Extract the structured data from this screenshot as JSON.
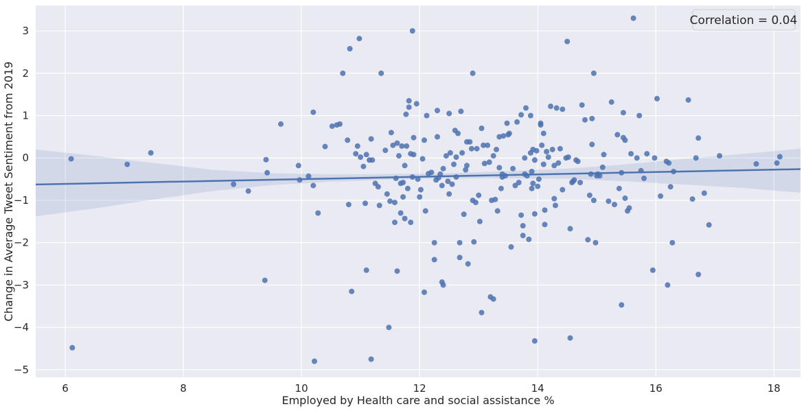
{
  "chart_data": {
    "type": "scatter",
    "title": "",
    "xlabel": "Employed by Health care and social assistance %",
    "ylabel": "Change in Average Tweet Sentiment from 2019",
    "xlim": [
      5.5,
      18.45
    ],
    "ylim": [
      -5.18,
      3.6
    ],
    "x_ticks": [
      6,
      8,
      10,
      12,
      14,
      16,
      18
    ],
    "y_ticks": [
      3,
      2,
      1,
      0,
      -1,
      -2,
      -3,
      -4,
      -5
    ],
    "x_tick_labels": [
      "6",
      "8",
      "10",
      "12",
      "14",
      "16",
      "18"
    ],
    "y_tick_labels": [
      "3",
      "2",
      "1",
      "0",
      "−1",
      "−2",
      "−3",
      "−4",
      "−5"
    ],
    "grid": true,
    "legend": {
      "text": "Correlation = 0.04",
      "placement": "top-right"
    },
    "colors": {
      "background": "#eaeaf2",
      "grid": "#ffffff",
      "points": "#4c72b0",
      "line": "#4c72b0",
      "band": "#4c72b0"
    },
    "regression": {
      "intercept": -0.78,
      "slope": 0.028
    },
    "confidence_band": {
      "x": [
        5.5,
        6.5,
        7.5,
        8.5,
        9.5,
        10.5,
        11.5,
        12.5,
        13.5,
        14.5,
        15.5,
        16.5,
        17.5,
        18.45
      ],
      "upper": [
        0.2,
        0.05,
        -0.12,
        -0.28,
        -0.36,
        -0.39,
        -0.38,
        -0.36,
        -0.31,
        -0.25,
        -0.15,
        -0.02,
        0.1,
        0.22
      ],
      "lower": [
        -1.38,
        -1.19,
        -0.98,
        -0.78,
        -0.64,
        -0.56,
        -0.51,
        -0.48,
        -0.48,
        -0.49,
        -0.55,
        -0.63,
        -0.71,
        -0.82
      ]
    },
    "points": [
      [
        6.1,
        -0.02
      ],
      [
        6.12,
        -4.48
      ],
      [
        7.05,
        -0.15
      ],
      [
        7.45,
        0.12
      ],
      [
        8.85,
        -0.62
      ],
      [
        9.1,
        -0.78
      ],
      [
        9.38,
        -2.89
      ],
      [
        9.4,
        -0.04
      ],
      [
        9.42,
        -0.35
      ],
      [
        9.65,
        0.8
      ],
      [
        9.95,
        -0.18
      ],
      [
        9.97,
        -0.52
      ],
      [
        10.12,
        -0.43
      ],
      [
        10.2,
        -0.65
      ],
      [
        10.2,
        1.08
      ],
      [
        10.22,
        -4.8
      ],
      [
        10.28,
        -1.3
      ],
      [
        10.4,
        0.27
      ],
      [
        10.52,
        0.75
      ],
      [
        10.6,
        0.78
      ],
      [
        10.65,
        0.8
      ],
      [
        10.7,
        2.0
      ],
      [
        10.78,
        0.42
      ],
      [
        10.8,
        -1.1
      ],
      [
        10.82,
        2.58
      ],
      [
        10.85,
        -3.15
      ],
      [
        10.92,
        0.1
      ],
      [
        10.95,
        0.28
      ],
      [
        10.98,
        2.82
      ],
      [
        11.0,
        0.02
      ],
      [
        11.05,
        -0.2
      ],
      [
        11.08,
        -1.07
      ],
      [
        11.1,
        0.08
      ],
      [
        11.1,
        -2.65
      ],
      [
        11.15,
        -0.05
      ],
      [
        11.18,
        0.45
      ],
      [
        11.18,
        -4.75
      ],
      [
        11.2,
        -0.05
      ],
      [
        11.25,
        -0.6
      ],
      [
        11.3,
        -0.68
      ],
      [
        11.32,
        -1.12
      ],
      [
        11.35,
        2.0
      ],
      [
        11.42,
        0.18
      ],
      [
        11.45,
        -0.85
      ],
      [
        11.48,
        -4.0
      ],
      [
        11.5,
        -1.02
      ],
      [
        11.52,
        0.6
      ],
      [
        11.55,
        0.3
      ],
      [
        11.58,
        -1.05
      ],
      [
        11.58,
        -1.52
      ],
      [
        11.6,
        -0.48
      ],
      [
        11.62,
        -2.67
      ],
      [
        11.62,
        0.35
      ],
      [
        11.65,
        0.05
      ],
      [
        11.68,
        -0.6
      ],
      [
        11.68,
        -1.3
      ],
      [
        11.7,
        0.28
      ],
      [
        11.72,
        -0.92
      ],
      [
        11.72,
        -0.58
      ],
      [
        11.75,
        -0.18
      ],
      [
        11.75,
        -1.43
      ],
      [
        11.77,
        1.03
      ],
      [
        11.78,
        0.28
      ],
      [
        11.8,
        -0.72
      ],
      [
        11.82,
        1.2
      ],
      [
        11.82,
        1.35
      ],
      [
        11.85,
        -1.52
      ],
      [
        11.85,
        0.1
      ],
      [
        11.88,
        3.0
      ],
      [
        11.88,
        -0.45
      ],
      [
        11.9,
        0.48
      ],
      [
        11.9,
        0.08
      ],
      [
        11.95,
        1.28
      ],
      [
        11.97,
        -0.5
      ],
      [
        12.0,
        -0.92
      ],
      [
        12.02,
        -0.75
      ],
      [
        12.05,
        -0.02
      ],
      [
        12.08,
        0.42
      ],
      [
        12.08,
        -3.17
      ],
      [
        12.1,
        -1.25
      ],
      [
        12.12,
        1.0
      ],
      [
        12.15,
        -0.37
      ],
      [
        12.2,
        -0.34
      ],
      [
        12.25,
        -2.0
      ],
      [
        12.25,
        -2.4
      ],
      [
        12.28,
        -0.52
      ],
      [
        12.3,
        1.12
      ],
      [
        12.3,
        0.5
      ],
      [
        12.32,
        -0.47
      ],
      [
        12.35,
        -0.38
      ],
      [
        12.38,
        -0.65
      ],
      [
        12.38,
        -2.93
      ],
      [
        12.4,
        -0.25
      ],
      [
        12.4,
        -3.0
      ],
      [
        12.45,
        0.05
      ],
      [
        12.48,
        -0.55
      ],
      [
        12.5,
        -0.85
      ],
      [
        12.5,
        1.05
      ],
      [
        12.52,
        0.12
      ],
      [
        12.55,
        -0.62
      ],
      [
        12.58,
        -0.15
      ],
      [
        12.6,
        0.65
      ],
      [
        12.62,
        0.02
      ],
      [
        12.62,
        -0.45
      ],
      [
        12.65,
        0.58
      ],
      [
        12.68,
        -2.35
      ],
      [
        12.68,
        -2.0
      ],
      [
        12.7,
        1.1
      ],
      [
        12.72,
        0.12
      ],
      [
        12.75,
        -1.33
      ],
      [
        12.78,
        -0.28
      ],
      [
        12.8,
        -0.18
      ],
      [
        12.8,
        0.38
      ],
      [
        12.82,
        -2.5
      ],
      [
        12.85,
        0.38
      ],
      [
        12.88,
        0.22
      ],
      [
        12.9,
        2.0
      ],
      [
        12.9,
        -1.0
      ],
      [
        12.92,
        -1.98
      ],
      [
        12.95,
        -1.05
      ],
      [
        12.97,
        0.22
      ],
      [
        13.0,
        -0.88
      ],
      [
        13.02,
        -1.5
      ],
      [
        13.05,
        -3.65
      ],
      [
        13.05,
        0.7
      ],
      [
        13.08,
        0.3
      ],
      [
        13.1,
        -0.13
      ],
      [
        13.15,
        0.3
      ],
      [
        13.18,
        -0.1
      ],
      [
        13.2,
        -3.28
      ],
      [
        13.22,
        -1.0
      ],
      [
        13.25,
        -3.33
      ],
      [
        13.25,
        0.05
      ],
      [
        13.28,
        -0.98
      ],
      [
        13.3,
        0.2
      ],
      [
        13.32,
        -1.25
      ],
      [
        13.35,
        0.5
      ],
      [
        13.35,
        -0.23
      ],
      [
        13.38,
        -0.72
      ],
      [
        13.4,
        -0.45
      ],
      [
        13.4,
        -0.38
      ],
      [
        13.42,
        0.52
      ],
      [
        13.45,
        -0.42
      ],
      [
        13.48,
        0.82
      ],
      [
        13.5,
        0.55
      ],
      [
        13.52,
        0.58
      ],
      [
        13.55,
        -2.1
      ],
      [
        13.58,
        -0.25
      ],
      [
        13.62,
        -0.65
      ],
      [
        13.65,
        0.85
      ],
      [
        13.68,
        -0.58
      ],
      [
        13.72,
        1.02
      ],
      [
        13.72,
        -1.35
      ],
      [
        13.75,
        -1.6
      ],
      [
        13.75,
        -1.83
      ],
      [
        13.78,
        -0.38
      ],
      [
        13.78,
        0.0
      ],
      [
        13.8,
        1.18
      ],
      [
        13.82,
        -0.42
      ],
      [
        13.85,
        -1.92
      ],
      [
        13.88,
        1.0
      ],
      [
        13.88,
        0.12
      ],
      [
        13.9,
        -0.72
      ],
      [
        13.9,
        -0.32
      ],
      [
        13.92,
        0.2
      ],
      [
        13.92,
        -0.6
      ],
      [
        13.95,
        -4.32
      ],
      [
        13.95,
        -1.32
      ],
      [
        13.95,
        -0.05
      ],
      [
        13.98,
        0.17
      ],
      [
        14.0,
        -0.67
      ],
      [
        14.02,
        -0.5
      ],
      [
        14.05,
        0.82
      ],
      [
        14.05,
        0.78
      ],
      [
        14.07,
        0.3
      ],
      [
        14.1,
        0.58
      ],
      [
        14.1,
        -0.15
      ],
      [
        14.12,
        -1.57
      ],
      [
        14.12,
        -1.23
      ],
      [
        14.15,
        0.15
      ],
      [
        14.18,
        0.02
      ],
      [
        14.22,
        1.22
      ],
      [
        14.25,
        0.2
      ],
      [
        14.28,
        -0.96
      ],
      [
        14.28,
        -0.18
      ],
      [
        14.3,
        -1.12
      ],
      [
        14.32,
        1.18
      ],
      [
        14.35,
        -0.12
      ],
      [
        14.38,
        0.22
      ],
      [
        14.42,
        -0.75
      ],
      [
        14.42,
        1.15
      ],
      [
        14.48,
        0.0
      ],
      [
        14.5,
        2.75
      ],
      [
        14.52,
        0.02
      ],
      [
        14.55,
        -1.67
      ],
      [
        14.55,
        -4.25
      ],
      [
        14.58,
        -0.58
      ],
      [
        14.6,
        -0.55
      ],
      [
        14.62,
        -0.52
      ],
      [
        14.65,
        -0.05
      ],
      [
        14.68,
        -0.08
      ],
      [
        14.72,
        -0.58
      ],
      [
        14.75,
        1.25
      ],
      [
        14.8,
        0.9
      ],
      [
        14.85,
        -1.93
      ],
      [
        14.88,
        -0.88
      ],
      [
        14.9,
        -0.38
      ],
      [
        14.92,
        0.93
      ],
      [
        14.92,
        0.32
      ],
      [
        14.95,
        2.0
      ],
      [
        14.95,
        -1.0
      ],
      [
        14.98,
        -2.0
      ],
      [
        15.0,
        -0.42
      ],
      [
        15.02,
        -0.38
      ],
      [
        15.05,
        -0.42
      ],
      [
        15.1,
        -0.22
      ],
      [
        15.12,
        0.08
      ],
      [
        15.2,
        -1.02
      ],
      [
        15.25,
        1.32
      ],
      [
        15.3,
        -1.1
      ],
      [
        15.35,
        0.55
      ],
      [
        15.38,
        -0.72
      ],
      [
        15.42,
        -0.35
      ],
      [
        15.42,
        -3.47
      ],
      [
        15.45,
        0.48
      ],
      [
        15.45,
        1.07
      ],
      [
        15.48,
        -0.95
      ],
      [
        15.48,
        0.42
      ],
      [
        15.52,
        -1.25
      ],
      [
        15.55,
        -1.18
      ],
      [
        15.58,
        0.1
      ],
      [
        15.62,
        3.3
      ],
      [
        15.68,
        0.0
      ],
      [
        15.72,
        1.0
      ],
      [
        15.75,
        -0.3
      ],
      [
        15.8,
        -0.48
      ],
      [
        15.85,
        0.1
      ],
      [
        15.95,
        -2.65
      ],
      [
        15.98,
        0.0
      ],
      [
        16.02,
        1.4
      ],
      [
        16.08,
        -0.9
      ],
      [
        16.18,
        -0.08
      ],
      [
        16.2,
        -3.0
      ],
      [
        16.22,
        -0.12
      ],
      [
        16.25,
        -0.68
      ],
      [
        16.28,
        -2.0
      ],
      [
        16.3,
        -0.32
      ],
      [
        16.55,
        1.37
      ],
      [
        16.62,
        -0.97
      ],
      [
        16.68,
        0.0
      ],
      [
        16.72,
        0.47
      ],
      [
        16.72,
        -2.75
      ],
      [
        16.82,
        -0.83
      ],
      [
        16.9,
        -1.58
      ],
      [
        17.08,
        0.05
      ],
      [
        17.7,
        -0.14
      ],
      [
        18.05,
        -0.12
      ],
      [
        18.1,
        0.03
      ]
    ]
  }
}
